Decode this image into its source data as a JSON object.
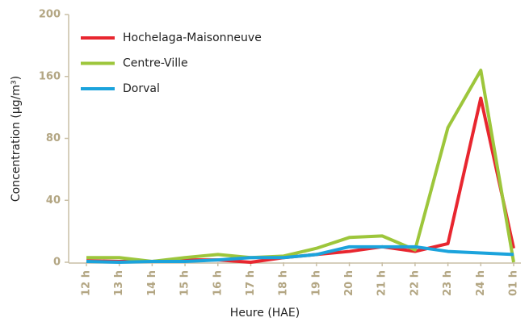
{
  "chart_data": {
    "type": "line",
    "x_label": "Heure (HAE)",
    "y_label": "Concentration (µg/m³)",
    "categories": [
      "12 h",
      "13 h",
      "14 h",
      "15 h",
      "16 h",
      "17 h",
      "18 h",
      "19 h",
      "20 h",
      "21 h",
      "22 h",
      "23 h",
      "24 h",
      "01 h"
    ],
    "series": [
      {
        "name": "Hochelaga-Maisonneuve",
        "color": "#e8262f",
        "values": [
          1,
          0.5,
          0.5,
          1.5,
          1.5,
          0,
          3,
          5,
          7,
          10,
          7,
          12,
          132,
          9
        ]
      },
      {
        "name": "Centre-Ville",
        "color": "#9dc63b",
        "values": [
          3,
          3,
          0.5,
          3,
          5,
          3,
          4,
          9,
          16,
          17,
          8,
          94,
          164,
          0
        ]
      },
      {
        "name": "Dorval",
        "color": "#1ba3dc",
        "values": [
          0.5,
          0,
          0.5,
          0.5,
          1.5,
          3,
          3,
          5,
          10,
          10,
          10,
          7,
          6,
          5
        ]
      }
    ],
    "ylim": [
      0,
      200
    ],
    "yticks": [
      0,
      40,
      80,
      160,
      200
    ],
    "grid": false,
    "legend": "upper left"
  }
}
